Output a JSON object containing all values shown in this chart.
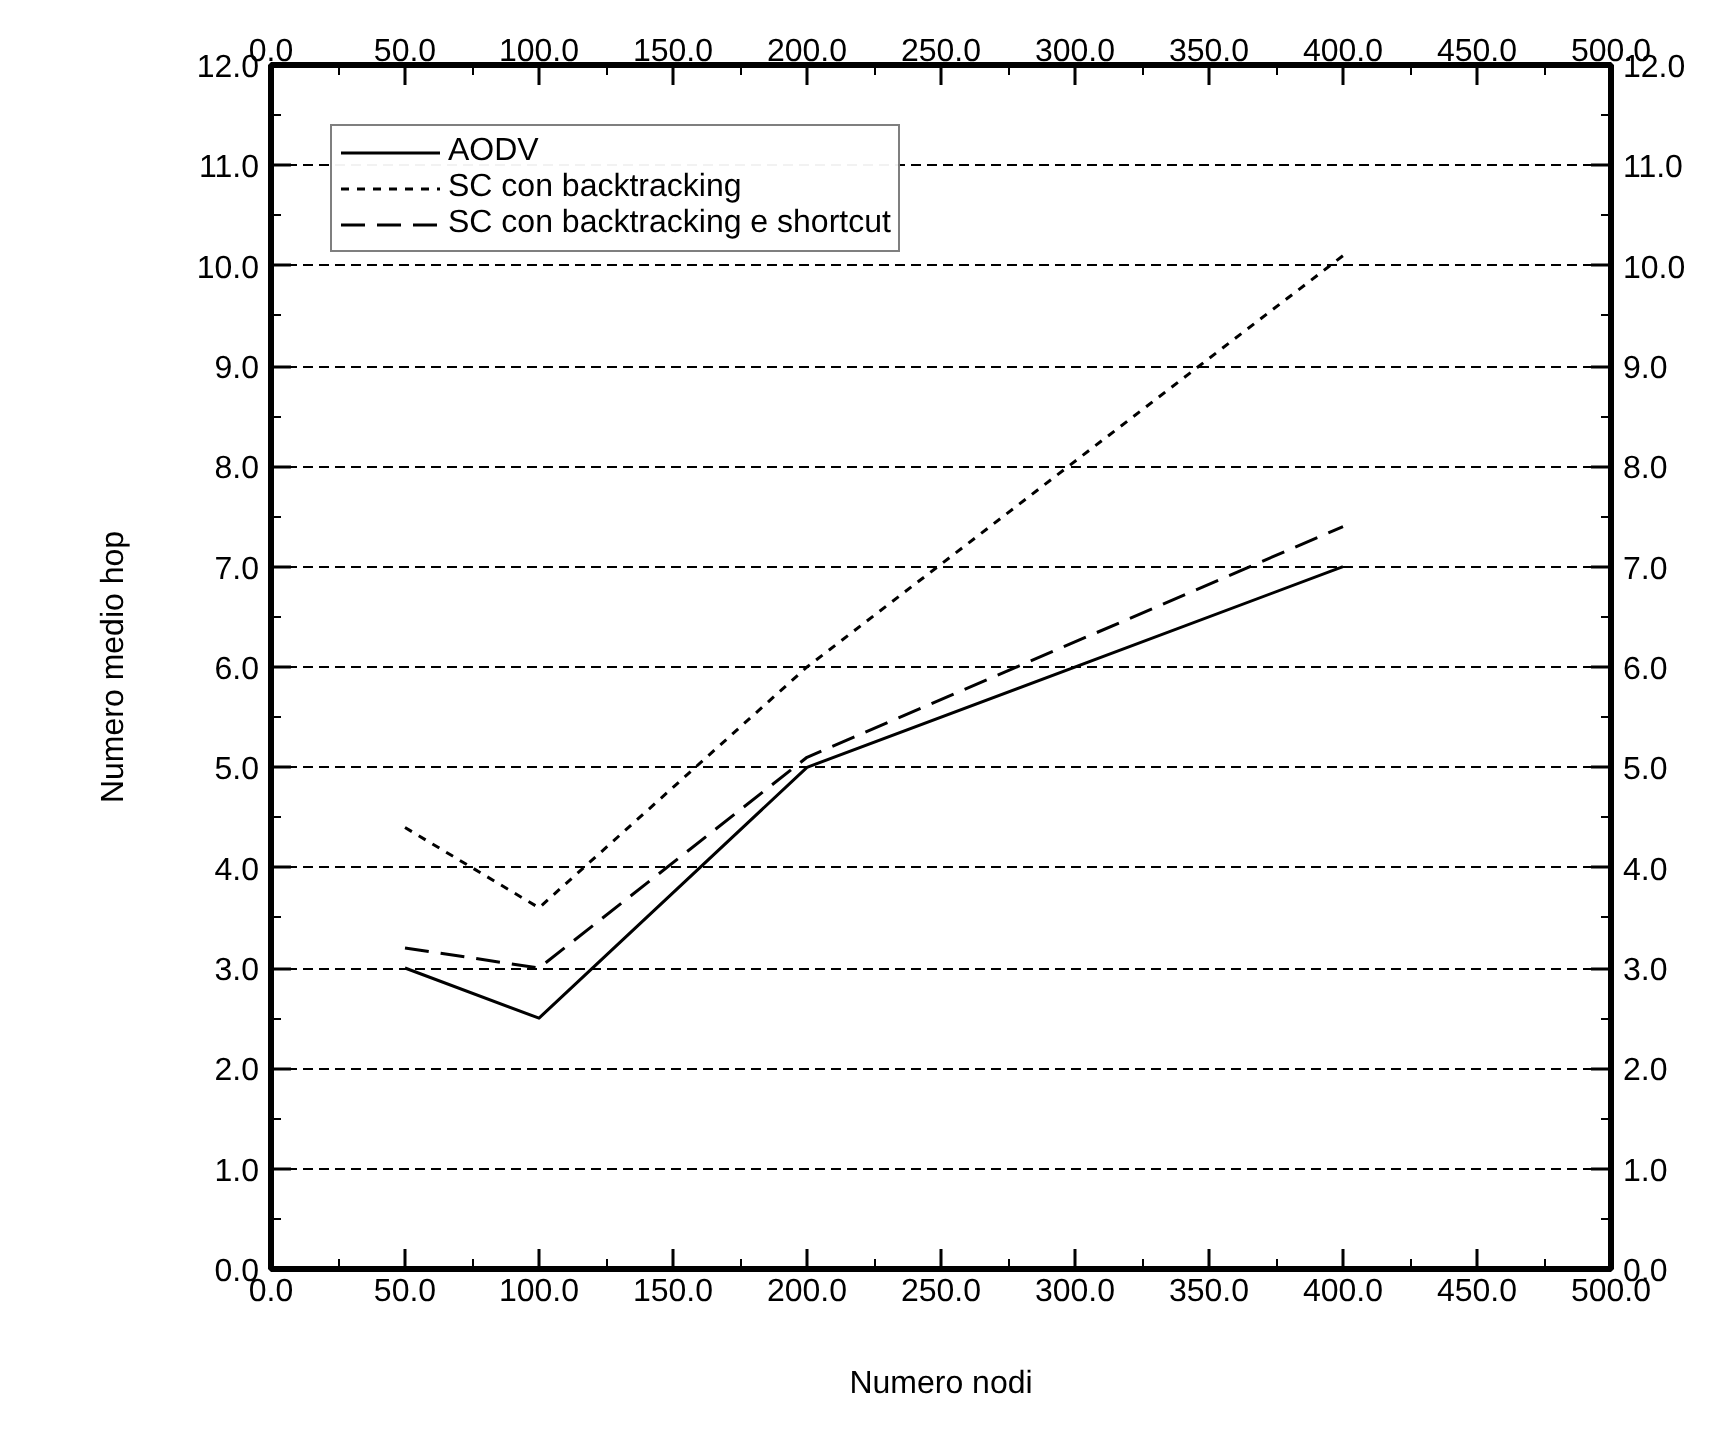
{
  "chart_data": {
    "type": "line",
    "xlabel": "Numero nodi",
    "ylabel": "Numero medio hop",
    "x": [
      50,
      100,
      200,
      400
    ],
    "series": [
      {
        "name": "AODV",
        "color": "#000000",
        "line_style": "solid",
        "values": [
          3.0,
          2.5,
          5.0,
          7.0
        ]
      },
      {
        "name": "SC con backtracking",
        "color": "#000000",
        "line_style": "dotted",
        "values": [
          4.4,
          3.6,
          6.0,
          10.1
        ]
      },
      {
        "name": "SC con backtracking e shortcut",
        "color": "#000000",
        "line_style": "dashed",
        "values": [
          3.2,
          3.0,
          5.1,
          7.4
        ]
      }
    ],
    "xlim": [
      0,
      500
    ],
    "xticks": [
      {
        "value": 0,
        "label": "0.0"
      },
      {
        "value": 50,
        "label": "50.0"
      },
      {
        "value": 100,
        "label": "100.0"
      },
      {
        "value": 150,
        "label": "150.0"
      },
      {
        "value": 200,
        "label": "200.0"
      },
      {
        "value": 250,
        "label": "250.0"
      },
      {
        "value": 300,
        "label": "300.0"
      },
      {
        "value": 350,
        "label": "350.0"
      },
      {
        "value": 400,
        "label": "400.0"
      },
      {
        "value": 450,
        "label": "450.0"
      },
      {
        "value": 500,
        "label": "500.0"
      }
    ],
    "x2lim": [
      0,
      500
    ],
    "x2ticks": [
      {
        "value": 0,
        "label": "0.0"
      },
      {
        "value": 50,
        "label": "50.0"
      },
      {
        "value": 100,
        "label": "100.0"
      },
      {
        "value": 150,
        "label": "150.0"
      },
      {
        "value": 200,
        "label": "200.0"
      },
      {
        "value": 250,
        "label": "250.0"
      },
      {
        "value": 300,
        "label": "300.0"
      },
      {
        "value": 350,
        "label": "350.0"
      },
      {
        "value": 400,
        "label": "400.0"
      },
      {
        "value": 450,
        "label": "450.0"
      },
      {
        "value": 500,
        "label": "500.0"
      }
    ],
    "ylim": [
      0,
      12
    ],
    "yticks": [
      {
        "value": 0,
        "label": "0.0"
      },
      {
        "value": 1,
        "label": "1.0"
      },
      {
        "value": 2,
        "label": "2.0"
      },
      {
        "value": 3,
        "label": "3.0"
      },
      {
        "value": 4,
        "label": "4.0"
      },
      {
        "value": 5,
        "label": "5.0"
      },
      {
        "value": 6,
        "label": "6.0"
      },
      {
        "value": 7,
        "label": "7.0"
      },
      {
        "value": 8,
        "label": "8.0"
      },
      {
        "value": 9,
        "label": "9.0"
      },
      {
        "value": 10,
        "label": "10.0"
      },
      {
        "value": 11,
        "label": "11.0"
      },
      {
        "value": 12,
        "label": "12.0"
      }
    ],
    "y2lim": [
      0,
      12
    ],
    "y2ticks": [
      {
        "value": 0,
        "label": "0.0"
      },
      {
        "value": 1,
        "label": "1.0"
      },
      {
        "value": 2,
        "label": "2.0"
      },
      {
        "value": 3,
        "label": "3.0"
      },
      {
        "value": 4,
        "label": "4.0"
      },
      {
        "value": 5,
        "label": "5.0"
      },
      {
        "value": 6,
        "label": "6.0"
      },
      {
        "value": 7,
        "label": "7.0"
      },
      {
        "value": 8,
        "label": "8.0"
      },
      {
        "value": 9,
        "label": "9.0"
      },
      {
        "value": 10,
        "label": "10.0"
      },
      {
        "value": 11,
        "label": "11.0"
      },
      {
        "value": 12,
        "label": "12.0"
      }
    ],
    "grid": "y",
    "legend": "top left"
  }
}
